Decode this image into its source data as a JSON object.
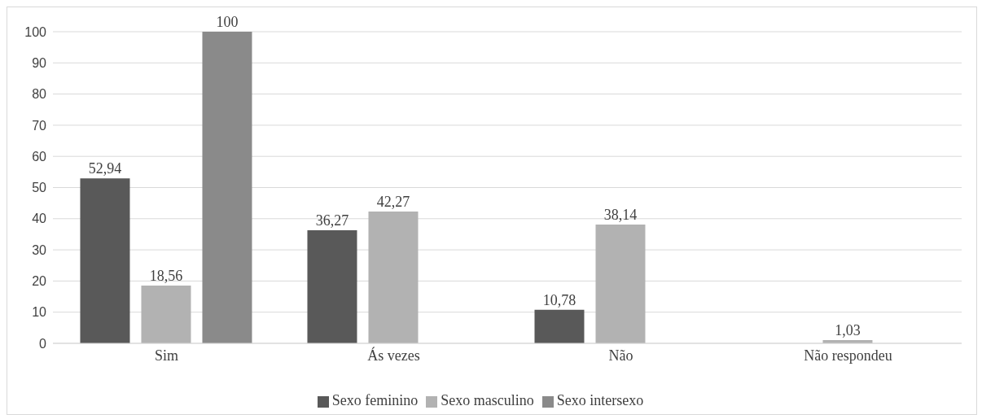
{
  "chart_data": {
    "type": "bar",
    "categories": [
      "Sim",
      "Ás vezes",
      "Não",
      "Não respondeu"
    ],
    "series": [
      {
        "name": "Sexo feminino",
        "color": "#595959",
        "values": [
          52.94,
          36.27,
          10.78,
          null
        ],
        "value_labels": [
          "52,94",
          "36,27",
          "10,78",
          null
        ]
      },
      {
        "name": "Sexo masculino",
        "color": "#b2b2b2",
        "values": [
          18.56,
          42.27,
          38.14,
          1.03
        ],
        "value_labels": [
          "18,56",
          "42,27",
          "38,14",
          "1,03"
        ]
      },
      {
        "name": "Sexo intersexo",
        "color": "#8a8a8a",
        "values": [
          100,
          null,
          null,
          null
        ],
        "value_labels": [
          "100",
          null,
          null,
          null
        ]
      }
    ],
    "ylim": [
      0,
      100
    ],
    "yticks": [
      0,
      10,
      20,
      30,
      40,
      50,
      60,
      70,
      80,
      90,
      100
    ],
    "grid": "y",
    "legend": "bottom"
  }
}
